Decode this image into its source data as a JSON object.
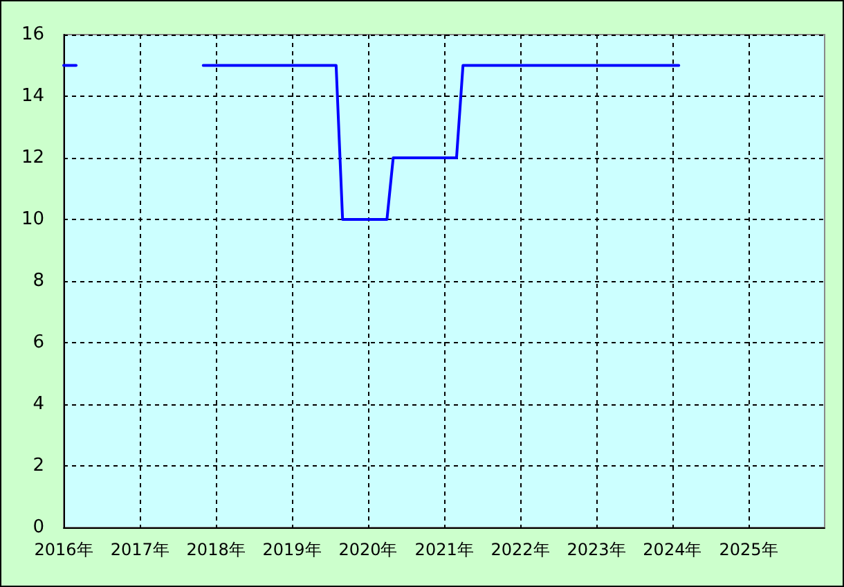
{
  "chart_data": {
    "type": "line",
    "series": [
      {
        "color": "#0000ff",
        "x": [
          "2016-01",
          "2016-03"
        ],
        "values": [
          15,
          15
        ]
      },
      {
        "color": "#0000ff",
        "x": [
          "2017-11",
          "2019-08",
          "2019-09",
          "2020-04",
          "2020-05",
          "2021-03",
          "2021-04",
          "2024-02"
        ],
        "values": [
          15,
          15,
          10,
          10,
          12,
          12,
          15,
          15
        ]
      }
    ],
    "xlim": [
      "2016-01",
      "2026-01"
    ],
    "xticks": [
      {
        "value": "2016",
        "label": "2016年"
      },
      {
        "value": "2017",
        "label": "2017年"
      },
      {
        "value": "2018",
        "label": "2018年"
      },
      {
        "value": "2019",
        "label": "2019年"
      },
      {
        "value": "2020",
        "label": "2020年"
      },
      {
        "value": "2021",
        "label": "2021年"
      },
      {
        "value": "2022",
        "label": "2022年"
      },
      {
        "value": "2023",
        "label": "2023年"
      },
      {
        "value": "2024",
        "label": "2024年"
      },
      {
        "value": "2025",
        "label": "2025年"
      }
    ],
    "ylim": [
      0,
      16
    ],
    "yticks": [
      0,
      2,
      4,
      6,
      8,
      10,
      12,
      14,
      16
    ],
    "grid": true,
    "marker": "none",
    "line_style": "solid"
  }
}
